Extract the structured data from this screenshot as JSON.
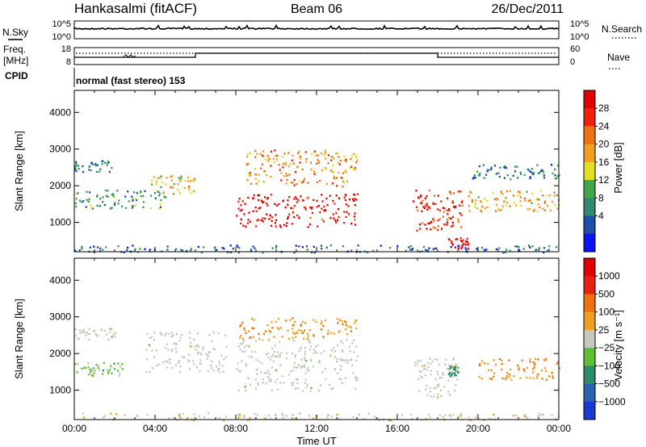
{
  "header": {
    "station": "Hankasalmi (fitACF)",
    "beam": "Beam 06",
    "date": "26/Dec/2011"
  },
  "noise_panel": {
    "left_label": "N.Sky",
    "right_label": "N.Search",
    "left_ticks": [
      "10^5",
      "10^0"
    ],
    "right_ticks": [
      "10^5",
      "10^0"
    ]
  },
  "freq_panel": {
    "left_label_line1": "Freq.",
    "left_label_line2": "[MHz]",
    "left_ticks": [
      "18",
      "8"
    ],
    "right_ticks": [
      "60",
      "0"
    ],
    "right_label": "Nave"
  },
  "cpid": {
    "label": "CPID",
    "mode_text": "normal (fast stereo) 153"
  },
  "x_axis": {
    "title": "Time UT",
    "tick_labels": [
      "00:00",
      "04:00",
      "08:00",
      "12:00",
      "16:00",
      "20:00",
      "00:00"
    ]
  },
  "power_panel": {
    "ylabel": "Slant Range [km]",
    "y_ticks": [
      "4000",
      "3000",
      "2000",
      "1000"
    ],
    "colorbar_title": "Power [dB]",
    "colorbar_ticks": [
      "28",
      "24",
      "20",
      "16",
      "12",
      "8",
      "4"
    ],
    "colors": [
      "#0a14f0",
      "#1d4fa8",
      "#2f8a6f",
      "#3fa64a",
      "#e0e020",
      "#f0a020",
      "#f07014",
      "#f02010",
      "#e00000"
    ]
  },
  "velocity_panel": {
    "ylabel": "Slant Range [km]",
    "y_ticks": [
      "4000",
      "3000",
      "2000",
      "1000"
    ],
    "colorbar_title": "Velocity [m s⁻¹]",
    "colorbar_ticks": [
      "1000",
      "500",
      "100",
      "25",
      "−25",
      "−100",
      "−500",
      "−1000"
    ],
    "colors": [
      "#1a3ad0",
      "#2a64b0",
      "#2e8a6a",
      "#5cbf34",
      "#c8c8c0",
      "#f0a020",
      "#f07010",
      "#e82010",
      "#e00000"
    ]
  },
  "chart_data": [
    {
      "type": "heatmap",
      "title": "Hankasalmi (fitACF) Beam 06 26/Dec/2011",
      "xlabel": "Time UT",
      "ylabel": "Slant Range [km]",
      "colorbar_label": "Power [dB]",
      "xlim": [
        0,
        24
      ],
      "ylim": [
        200,
        4600
      ],
      "color_range": [
        0,
        30
      ],
      "regions": [
        {
          "t0": 0.0,
          "t1": 4.5,
          "r0": 1400,
          "r1": 1900,
          "value": 10
        },
        {
          "t0": 0.0,
          "t1": 2.0,
          "r0": 2400,
          "r1": 2700,
          "value": 8
        },
        {
          "t0": 3.8,
          "t1": 6.0,
          "r0": 1800,
          "r1": 2300,
          "value": 16
        },
        {
          "t0": 8.0,
          "t1": 14.0,
          "r0": 900,
          "r1": 1800,
          "value": 28
        },
        {
          "t0": 8.5,
          "t1": 14.0,
          "r0": 2000,
          "r1": 3000,
          "value": 20
        },
        {
          "t0": 16.7,
          "t1": 19.2,
          "r0": 800,
          "r1": 1900,
          "value": 26
        },
        {
          "t0": 18.5,
          "t1": 19.5,
          "r0": 300,
          "r1": 600,
          "value": 28
        },
        {
          "t0": 19.5,
          "t1": 24.0,
          "r0": 1300,
          "r1": 1900,
          "value": 18
        },
        {
          "t0": 19.5,
          "t1": 24.0,
          "r0": 2200,
          "r1": 2600,
          "value": 8
        },
        {
          "t0": 0.0,
          "t1": 24.0,
          "r0": 200,
          "r1": 400,
          "value": 6
        }
      ]
    },
    {
      "type": "heatmap",
      "title": "",
      "xlabel": "Time UT",
      "ylabel": "Slant Range [km]",
      "colorbar_label": "Velocity [m s⁻¹]",
      "xlim": [
        0,
        24
      ],
      "ylim": [
        200,
        4600
      ],
      "color_range": [
        -1000,
        1000
      ],
      "regions": [
        {
          "t0": 0.0,
          "t1": 2.5,
          "r0": 1400,
          "r1": 1800,
          "value": -200
        },
        {
          "t0": 0.0,
          "t1": 2.0,
          "r0": 2400,
          "r1": 2700,
          "value": 0
        },
        {
          "t0": 3.5,
          "t1": 7.5,
          "r0": 1500,
          "r1": 2600,
          "value": 0
        },
        {
          "t0": 8.0,
          "t1": 14.0,
          "r0": 1000,
          "r1": 2400,
          "value": 0
        },
        {
          "t0": 8.0,
          "t1": 14.0,
          "r0": 2400,
          "r1": 3000,
          "value": 300
        },
        {
          "t0": 16.7,
          "t1": 19.0,
          "r0": 800,
          "r1": 1900,
          "value": 0
        },
        {
          "t0": 18.5,
          "t1": 19.0,
          "r0": 1400,
          "r1": 1700,
          "value": -400
        },
        {
          "t0": 20.0,
          "t1": 24.0,
          "r0": 1300,
          "r1": 1900,
          "value": 300
        },
        {
          "t0": 0.0,
          "t1": 24.0,
          "r0": 200,
          "r1": 400,
          "value": 60
        }
      ]
    }
  ]
}
